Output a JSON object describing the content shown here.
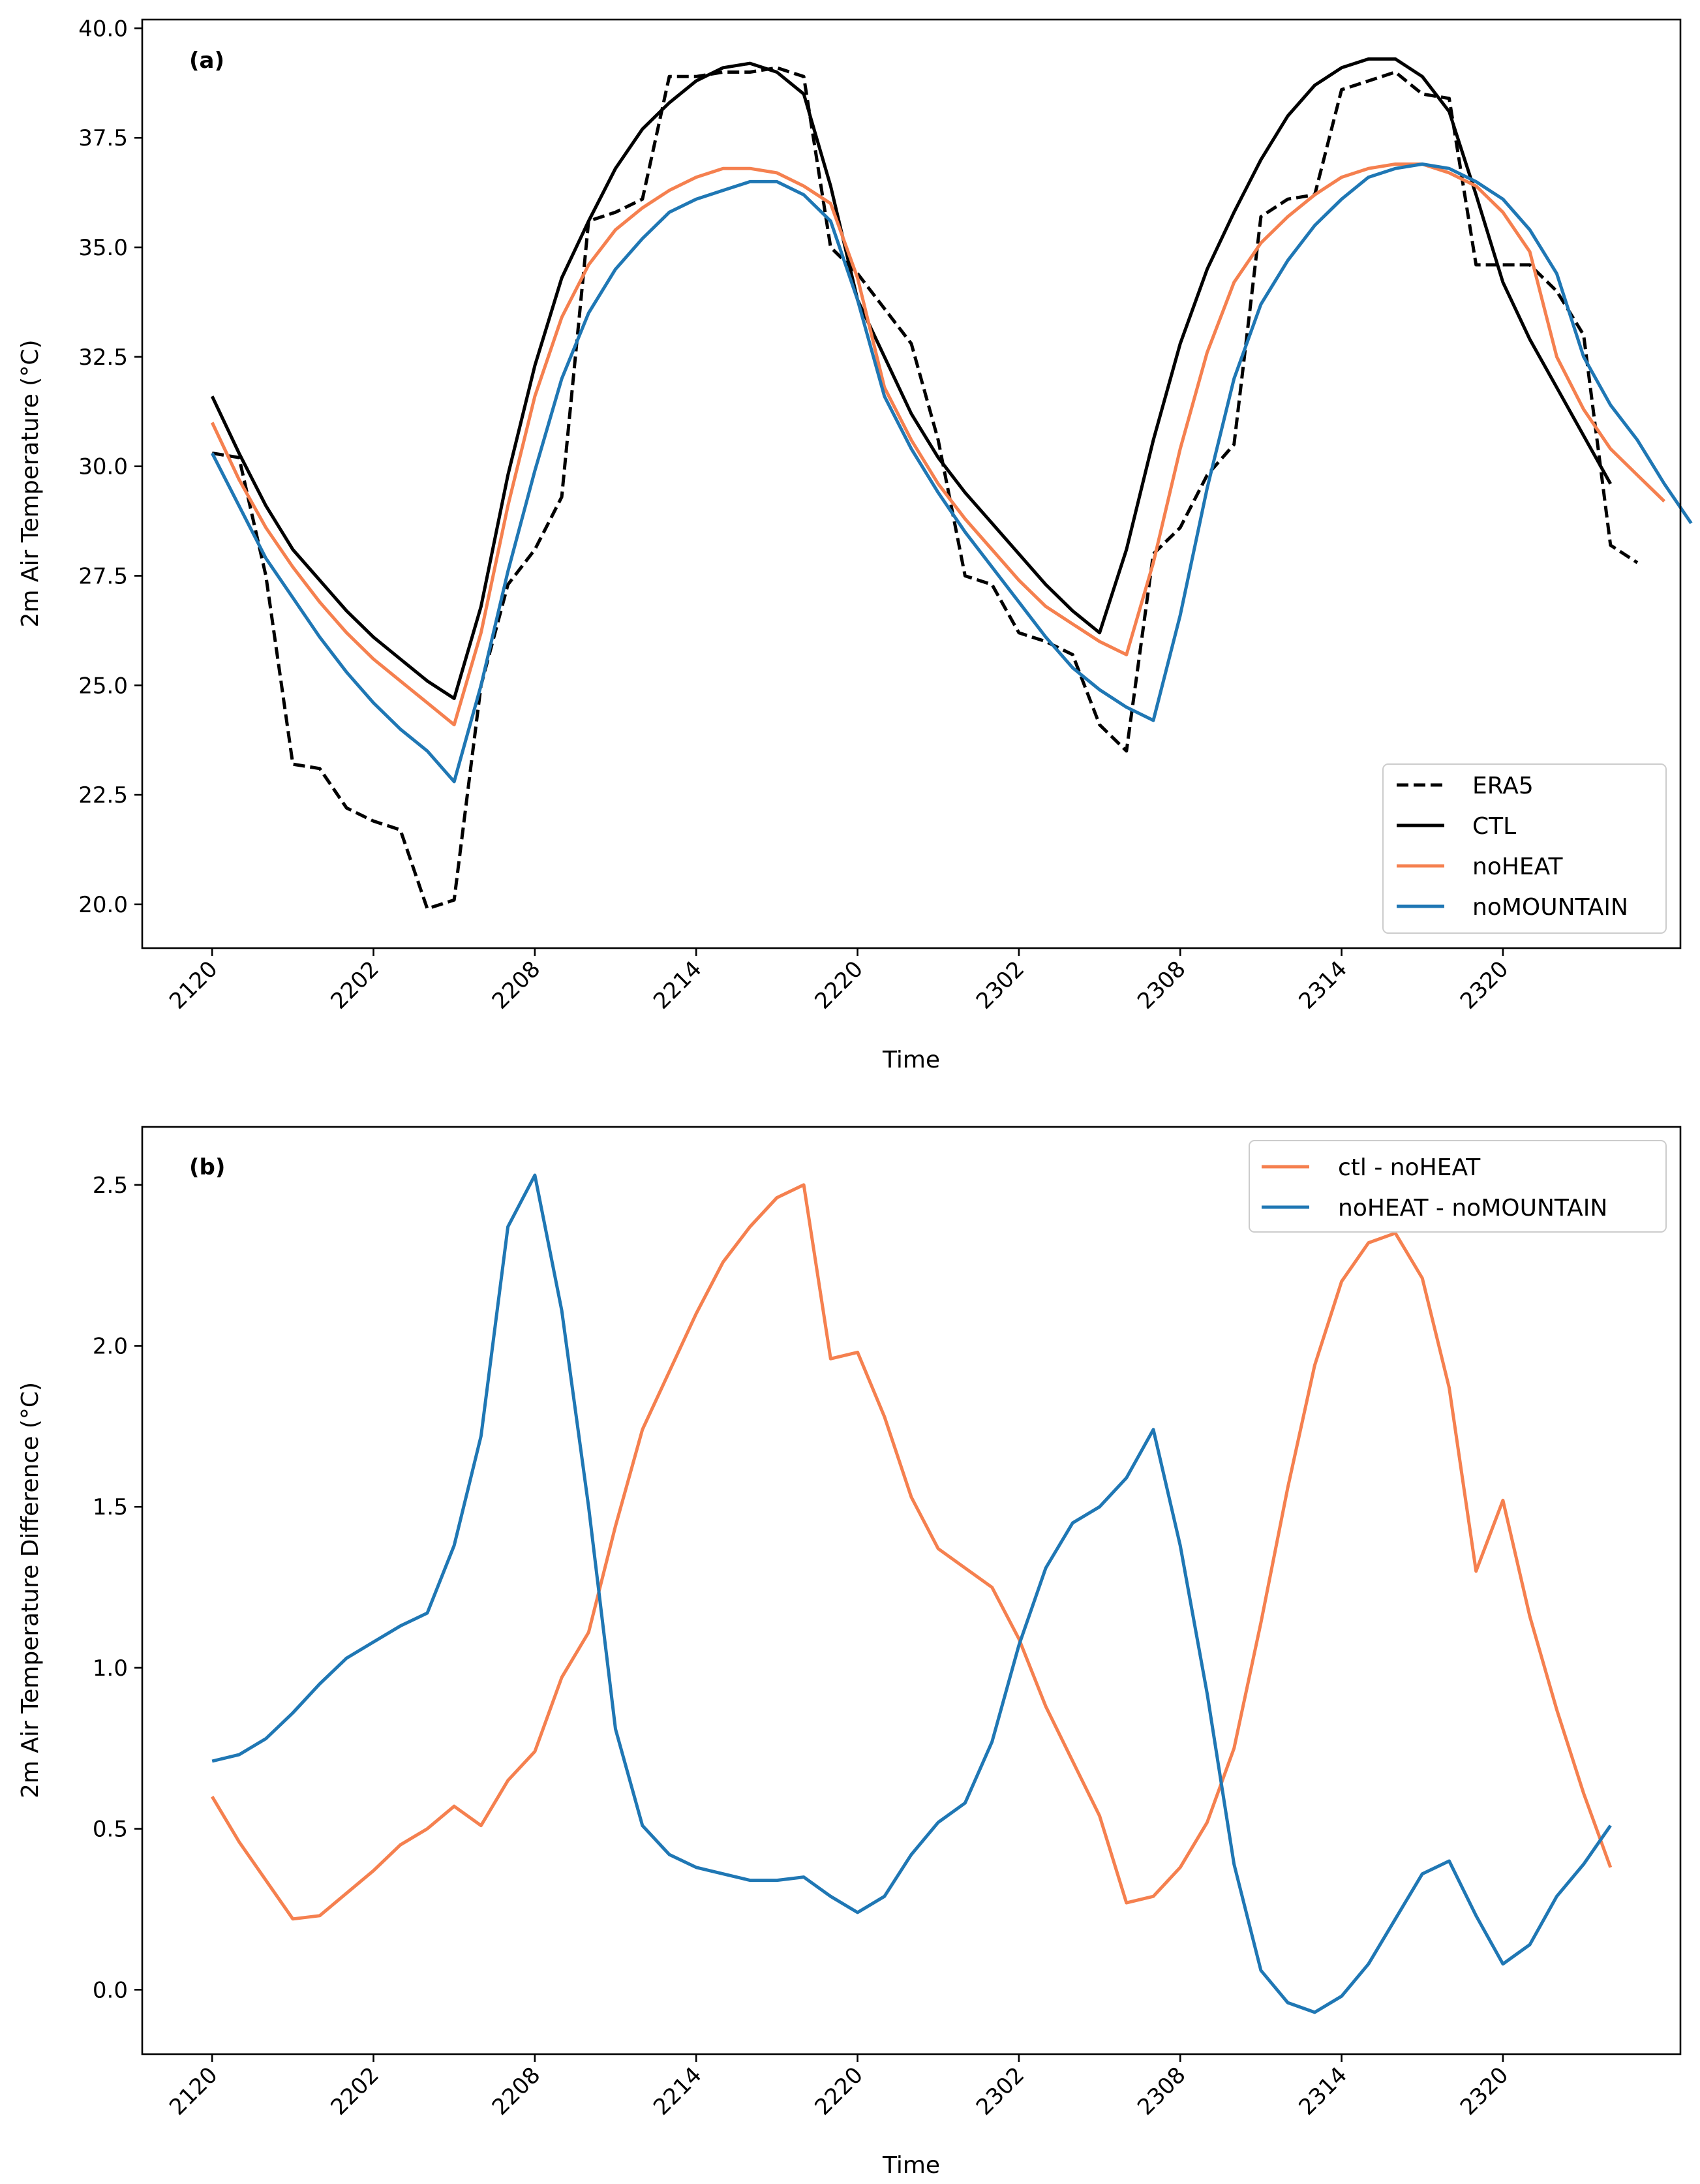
{
  "chart_data": [
    {
      "type": "line",
      "panel_label": "(a)",
      "xlabel": "Time",
      "ylabel": "2m Air Temperature (°C)",
      "x_tick_labels": [
        "2120",
        "2202",
        "2208",
        "2214",
        "2220",
        "2302",
        "2308",
        "2314",
        "2320"
      ],
      "x_tick_indices": [
        0,
        6,
        12,
        18,
        24,
        30,
        36,
        42,
        48
      ],
      "xlim": [
        -2.6,
        54.6
      ],
      "ylim": [
        19.0,
        40.2
      ],
      "y_ticks": [
        20.0,
        22.5,
        25.0,
        27.5,
        30.0,
        32.5,
        35.0,
        37.5,
        40.0
      ],
      "y_tick_labels": [
        "20.0",
        "22.5",
        "25.0",
        "27.5",
        "30.0",
        "32.5",
        "35.0",
        "37.5",
        "40.0"
      ],
      "legend": {
        "position": "lower-right",
        "entries": [
          "ERA5",
          "CTL",
          "noHEAT",
          "noMOUNTAIN"
        ]
      },
      "series": [
        {
          "name": "ERA5",
          "color": "#000000",
          "dashed": true,
          "values": [
            30.3,
            30.2,
            27.5,
            23.2,
            23.1,
            22.2,
            21.9,
            21.7,
            19.9,
            20.1,
            25.0,
            27.3,
            28.1,
            29.3,
            35.6,
            35.8,
            36.1,
            38.9,
            38.9,
            39.0,
            39.0,
            39.1,
            38.9,
            35.0,
            34.4,
            33.6,
            32.8,
            30.6,
            27.5,
            27.3,
            26.2,
            26.0,
            25.7,
            24.1,
            23.5,
            28.0,
            28.6,
            29.8,
            30.5,
            35.7,
            36.1,
            36.2,
            38.6,
            38.8,
            39.0,
            38.5,
            38.4,
            34.6,
            34.6,
            34.6,
            34.0,
            33.0,
            28.2,
            27.8
          ]
        },
        {
          "name": "CTL",
          "color": "#000000",
          "dashed": false,
          "values": [
            31.6,
            30.3,
            29.1,
            28.1,
            27.4,
            26.7,
            26.1,
            25.6,
            25.1,
            24.7,
            26.8,
            29.8,
            32.3,
            34.3,
            35.6,
            36.8,
            37.7,
            38.3,
            38.8,
            39.1,
            39.2,
            39.0,
            38.5,
            36.4,
            33.8,
            32.5,
            31.2,
            30.2,
            29.4,
            28.7,
            28.0,
            27.3,
            26.7,
            26.2,
            28.1,
            30.6,
            32.8,
            34.5,
            35.8,
            37.0,
            38.0,
            38.7,
            39.1,
            39.3,
            39.3,
            38.9,
            38.1,
            36.2,
            34.2,
            32.9,
            31.8,
            30.7,
            29.6
          ]
        },
        {
          "name": "noHEAT",
          "color": "#f5804f",
          "dashed": false,
          "values": [
            31.0,
            29.7,
            28.6,
            27.7,
            26.9,
            26.2,
            25.6,
            25.1,
            24.6,
            24.1,
            26.2,
            29.1,
            31.6,
            33.4,
            34.6,
            35.4,
            35.9,
            36.3,
            36.6,
            36.8,
            36.8,
            36.7,
            36.4,
            36.0,
            34.3,
            31.8,
            30.6,
            29.6,
            28.8,
            28.1,
            27.4,
            26.8,
            26.4,
            26.0,
            25.7,
            27.8,
            30.4,
            32.6,
            34.2,
            35.1,
            35.7,
            36.2,
            36.6,
            36.8,
            36.9,
            36.9,
            36.7,
            36.4,
            35.8,
            34.9,
            32.5,
            31.3,
            30.4,
            29.8,
            29.2
          ]
        },
        {
          "name": "noMOUNTAIN",
          "color": "#1f77b4",
          "dashed": false,
          "values": [
            30.3,
            29.1,
            27.9,
            27.0,
            26.1,
            25.3,
            24.6,
            24.0,
            23.5,
            22.8,
            25.0,
            27.6,
            29.9,
            32.0,
            33.5,
            34.5,
            35.2,
            35.8,
            36.1,
            36.3,
            36.5,
            36.5,
            36.2,
            35.6,
            33.8,
            31.6,
            30.4,
            29.4,
            28.5,
            27.7,
            26.9,
            26.1,
            25.4,
            24.9,
            24.5,
            24.2,
            26.6,
            29.5,
            32.0,
            33.7,
            34.7,
            35.5,
            36.1,
            36.6,
            36.8,
            36.9,
            36.8,
            36.5,
            36.1,
            35.4,
            34.4,
            32.5,
            31.4,
            30.6,
            29.6,
            28.7
          ]
        }
      ]
    },
    {
      "type": "line",
      "panel_label": "(b)",
      "xlabel": "Time",
      "ylabel": "2m Air Temperature Difference (°C)",
      "x_tick_labels": [
        "2120",
        "2202",
        "2208",
        "2214",
        "2220",
        "2302",
        "2308",
        "2314",
        "2320"
      ],
      "x_tick_indices": [
        0,
        6,
        12,
        18,
        24,
        30,
        36,
        42,
        48
      ],
      "xlim": [
        -2.6,
        54.6
      ],
      "ylim": [
        -0.2,
        2.68
      ],
      "y_ticks": [
        0.0,
        0.5,
        1.0,
        1.5,
        2.0,
        2.5
      ],
      "y_tick_labels": [
        "0.0",
        "0.5",
        "1.0",
        "1.5",
        "2.0",
        "2.5"
      ],
      "legend": {
        "position": "upper-right",
        "entries": [
          "ctl - noHEAT",
          "noHEAT - noMOUNTAIN"
        ]
      },
      "series": [
        {
          "name": "ctl - noHEAT",
          "color": "#f5804f",
          "values": [
            0.6,
            0.46,
            0.34,
            0.22,
            0.23,
            0.3,
            0.37,
            0.45,
            0.5,
            0.57,
            0.51,
            0.65,
            0.74,
            0.97,
            1.11,
            1.44,
            1.74,
            1.92,
            2.1,
            2.26,
            2.37,
            2.46,
            2.5,
            1.96,
            1.98,
            1.78,
            1.53,
            1.37,
            1.31,
            1.25,
            1.09,
            0.88,
            0.71,
            0.54,
            0.27,
            0.29,
            0.38,
            0.52,
            0.75,
            1.14,
            1.56,
            1.94,
            2.2,
            2.32,
            2.35,
            2.21,
            1.87,
            1.3,
            1.52,
            1.16,
            0.87,
            0.61,
            0.38
          ]
        },
        {
          "name": "noHEAT - noMOUNTAIN",
          "color": "#1f77b4",
          "values": [
            0.71,
            0.73,
            0.78,
            0.86,
            0.95,
            1.03,
            1.08,
            1.13,
            1.17,
            1.38,
            1.72,
            2.37,
            2.53,
            2.11,
            1.5,
            0.81,
            0.51,
            0.42,
            0.38,
            0.36,
            0.34,
            0.34,
            0.35,
            0.29,
            0.24,
            0.29,
            0.42,
            0.52,
            0.58,
            0.77,
            1.07,
            1.31,
            1.45,
            1.5,
            1.59,
            1.74,
            1.38,
            0.92,
            0.39,
            0.06,
            -0.04,
            -0.07,
            -0.02,
            0.08,
            0.22,
            0.36,
            0.4,
            0.23,
            0.08,
            0.14,
            0.29,
            0.39,
            0.51
          ]
        }
      ]
    }
  ]
}
